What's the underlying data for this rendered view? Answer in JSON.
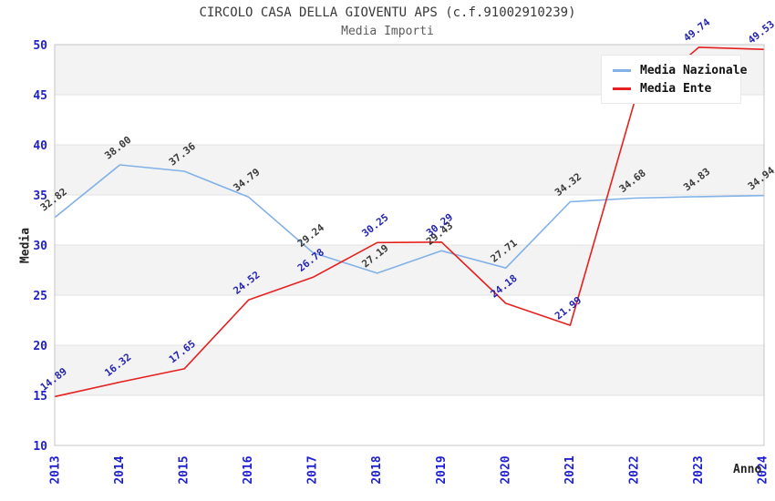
{
  "chart_data": {
    "type": "line",
    "title": "CIRCOLO CASA DELLA GIOVENTU APS (c.f.91002910239)",
    "subtitle": "Media Importi",
    "xlabel": "Anno",
    "ylabel": "Media",
    "ylim": [
      10,
      50
    ],
    "ytick_step": 5,
    "ytick_labels": [
      "10",
      "15",
      "20",
      "25",
      "30",
      "35",
      "40",
      "45",
      "50"
    ],
    "grid": "horizontal-bands",
    "legend_position": "top-right",
    "categories": [
      "2013",
      "2014",
      "2015",
      "2016",
      "2017",
      "2018",
      "2019",
      "2020",
      "2021",
      "2022",
      "2023",
      "2024"
    ],
    "series": [
      {
        "name": "Media Nazionale",
        "color": "#82B1E8",
        "label_color": "#3a3a3a",
        "values": [
          32.82,
          38.0,
          37.36,
          34.79,
          29.24,
          27.19,
          29.43,
          27.71,
          34.32,
          34.68,
          34.83,
          34.94
        ]
      },
      {
        "name": "Media Ente",
        "color": "#E52020",
        "label_color": "#2424b4",
        "values": [
          14.89,
          16.32,
          17.65,
          24.52,
          26.78,
          30.25,
          30.29,
          24.18,
          21.99,
          44.3,
          49.74,
          49.53
        ]
      }
    ],
    "colors": {
      "axis_tick_text": "#1f1fd2",
      "band_fill": "#f3f3f3",
      "gridline": "#e3e3e3",
      "plot_border": "#c4c4c4"
    }
  }
}
